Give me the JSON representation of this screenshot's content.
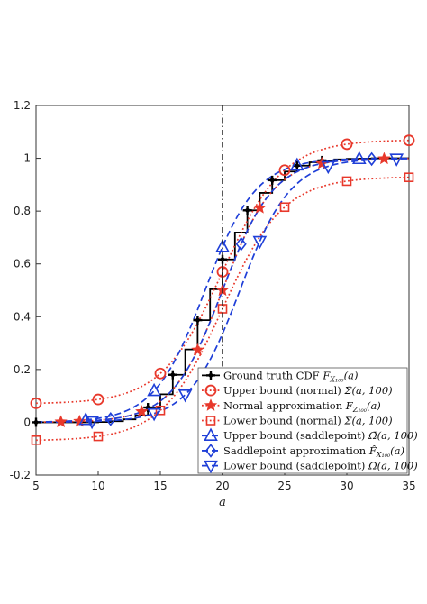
{
  "chart_data": {
    "type": "line",
    "xlabel": "a",
    "ylabel": "",
    "xlim": [
      5,
      35
    ],
    "ylim": [
      -0.2,
      1.2
    ],
    "xticks": [
      5,
      10,
      15,
      20,
      25,
      30,
      35
    ],
    "yticks": [
      -0.2,
      0,
      0.2,
      0.4,
      0.6,
      0.8,
      1,
      1.2
    ],
    "xtick_labels": [
      "5",
      "10",
      "15",
      "20",
      "25",
      "30",
      "35"
    ],
    "ytick_labels": [
      "-0.2",
      "0",
      "0.2",
      "0.4",
      "0.6",
      "0.8",
      "1",
      "1.2"
    ],
    "vertical_line_x": 20,
    "grid": false,
    "legend_position": "bottom-right",
    "series": [
      {
        "name": "Ground truth CDF F_{X_100}(a)",
        "legend_label": "Ground truth CDF",
        "legend_math": "F",
        "legend_sub": "X₁₀₀",
        "legend_tail": "(a)",
        "color": "#000000",
        "style": "solid-step",
        "marker": "plus",
        "x": [
          5,
          6,
          7,
          8,
          9,
          10,
          11,
          12,
          13,
          14,
          15,
          16,
          17,
          18,
          19,
          20,
          21,
          22,
          23,
          24,
          25,
          26,
          27,
          28,
          29,
          30,
          31,
          32,
          33,
          34,
          35
        ],
        "y": [
          0.0,
          0.0,
          0.0,
          0.0,
          0.0,
          0.001,
          0.004,
          0.011,
          0.026,
          0.056,
          0.106,
          0.18,
          0.276,
          0.387,
          0.504,
          0.617,
          0.719,
          0.803,
          0.869,
          0.917,
          0.95,
          0.972,
          0.985,
          0.992,
          0.996,
          0.998,
          0.999,
          1.0,
          1.0,
          1.0,
          1.0
        ],
        "marker_x": [
          5,
          14,
          16,
          18,
          20,
          22,
          24,
          26,
          28
        ]
      },
      {
        "name": "Upper bound (normal) Σ̄(a,100)",
        "legend_label": "Upper bound (normal)",
        "legend_math": "Σ̄",
        "legend_sub": "",
        "legend_tail": "(a, 100)",
        "color": "#e8382b",
        "style": "dotted",
        "marker": "circle",
        "shape": "upper_normal",
        "y_left": 0.07,
        "y_right": 1.07,
        "marker_x": [
          5,
          10,
          15,
          20,
          25,
          30,
          35
        ]
      },
      {
        "name": "Normal approximation F_{Z_100}(a)",
        "legend_label": "Normal approximation",
        "legend_math": "F",
        "legend_sub": "Z₁₀₀",
        "legend_tail": "(a)",
        "color": "#e8382b",
        "style": "dotted",
        "marker": "star",
        "shape": "normal",
        "marker_x": [
          7,
          8.5,
          13.5,
          18,
          20,
          23,
          28,
          33
        ]
      },
      {
        "name": "Lower bound (normal) Σ(a,100)",
        "legend_label": "Lower bound (normal)",
        "legend_math": "Σ̲",
        "legend_sub": "",
        "legend_tail": "(a, 100)",
        "color": "#e8382b",
        "style": "dotted",
        "marker": "square",
        "shape": "lower_normal",
        "y_left": -0.07,
        "y_right": 0.93,
        "marker_x": [
          5,
          10,
          15,
          20,
          25,
          30,
          35
        ]
      },
      {
        "name": "Upper bound (saddlepoint) Ω̄(a,100)",
        "legend_label": "Upper bound (saddlepoint)",
        "legend_math": "Ω̄",
        "legend_sub": "",
        "legend_tail": "(a, 100)",
        "color": "#1f3fd8",
        "style": "dashed",
        "marker": "triangle-up",
        "shape": "upper_saddle",
        "marker_x": [
          9,
          14.5,
          20,
          26,
          31
        ]
      },
      {
        "name": "Saddlepoint approximation F̂_{X_100}(a)",
        "legend_label": "Saddlepoint approximation",
        "legend_math": "F̂",
        "legend_sub": "X₁₀₀",
        "legend_tail": "(a)",
        "color": "#1f3fd8",
        "style": "dashed",
        "marker": "diamond",
        "shape": "saddle",
        "marker_x": [
          11,
          21.5,
          32
        ]
      },
      {
        "name": "Lower bound (saddlepoint) Ω(a,100)",
        "legend_label": "Lower bound (saddlepoint)",
        "legend_math": "Ω̲",
        "legend_sub": "",
        "legend_tail": "(a, 100)",
        "color": "#1f3fd8",
        "style": "dashed",
        "marker": "triangle-down",
        "shape": "lower_saddle",
        "marker_x": [
          9.5,
          14.5,
          17,
          23,
          28.5,
          34
        ]
      }
    ]
  }
}
